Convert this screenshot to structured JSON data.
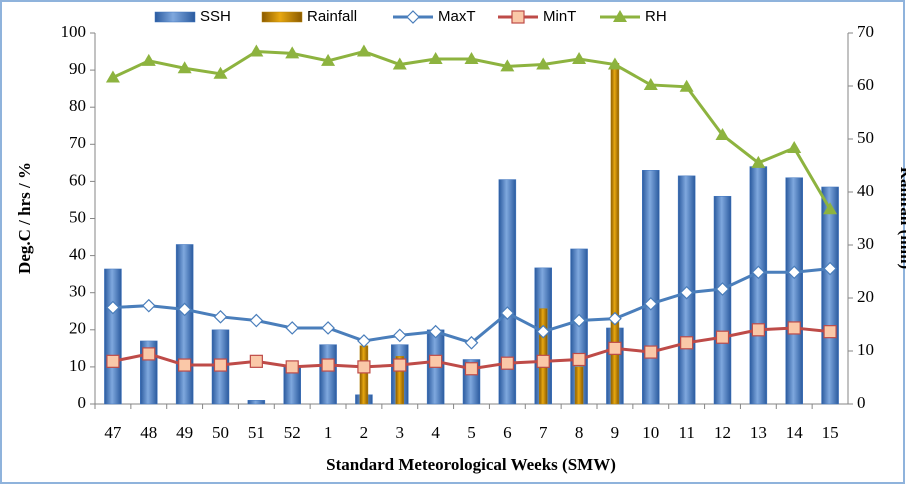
{
  "chart_data": {
    "type": "bar",
    "y_label": "Deg.C / hrs / %",
    "y2_label": "Rainfall (mm)",
    "x_label": "Standard Meteorological Weeks (SMW)",
    "categories": [
      "47",
      "48",
      "49",
      "50",
      "51",
      "52",
      "1",
      "2",
      "3",
      "4",
      "5",
      "6",
      "7",
      "8",
      "9",
      "10",
      "11",
      "12",
      "13",
      "14",
      "15"
    ],
    "ylim": [
      0,
      100
    ],
    "yticks": [
      0,
      10,
      20,
      30,
      40,
      50,
      60,
      70,
      80,
      90,
      100
    ],
    "y2lim": [
      0,
      70
    ],
    "y2ticks": [
      0,
      10,
      20,
      30,
      40,
      50,
      60,
      70
    ],
    "series": [
      {
        "name": "SSH",
        "type": "bar",
        "color": "#3f74be",
        "values": [
          36.4,
          17,
          43,
          20,
          1,
          10,
          16,
          2.5,
          16,
          20,
          12,
          60.5,
          36.7,
          41.8,
          20.5,
          63,
          61.5,
          56,
          64,
          61,
          58.5
        ]
      },
      {
        "name": "Rainfall",
        "type": "bar",
        "axis": "y2",
        "color": "#b8860b",
        "values": [
          0,
          0,
          0,
          0,
          0,
          0,
          0,
          11,
          9,
          0,
          0,
          0,
          18,
          7,
          64.3,
          0,
          0,
          0,
          0,
          0,
          0
        ]
      },
      {
        "name": "MaxT",
        "type": "line",
        "marker": "diamond",
        "color": "#4a7ebb",
        "values": [
          26,
          26.5,
          25.5,
          23.5,
          22.5,
          20.5,
          20.5,
          17,
          18.5,
          19.5,
          16.5,
          24.5,
          19.5,
          22.5,
          23,
          27,
          30,
          31,
          35.5,
          35.5,
          36.5
        ]
      },
      {
        "name": "MinT",
        "type": "line",
        "marker": "square",
        "color": "#be4b48",
        "values": [
          11.5,
          13.5,
          10.5,
          10.5,
          11.5,
          10,
          10.5,
          10,
          10.5,
          11.5,
          9.5,
          11,
          11.5,
          12,
          15,
          14,
          16.5,
          18,
          20,
          20.5,
          19.5
        ]
      },
      {
        "name": "RH",
        "type": "line",
        "marker": "triangle",
        "color": "#8db33f",
        "values": [
          88,
          92.5,
          90.5,
          89,
          95,
          94.5,
          92.5,
          95,
          91.5,
          93,
          93,
          91,
          91.5,
          93,
          91.5,
          86,
          85.5,
          72.5,
          65,
          69,
          52.5
        ]
      }
    ]
  }
}
